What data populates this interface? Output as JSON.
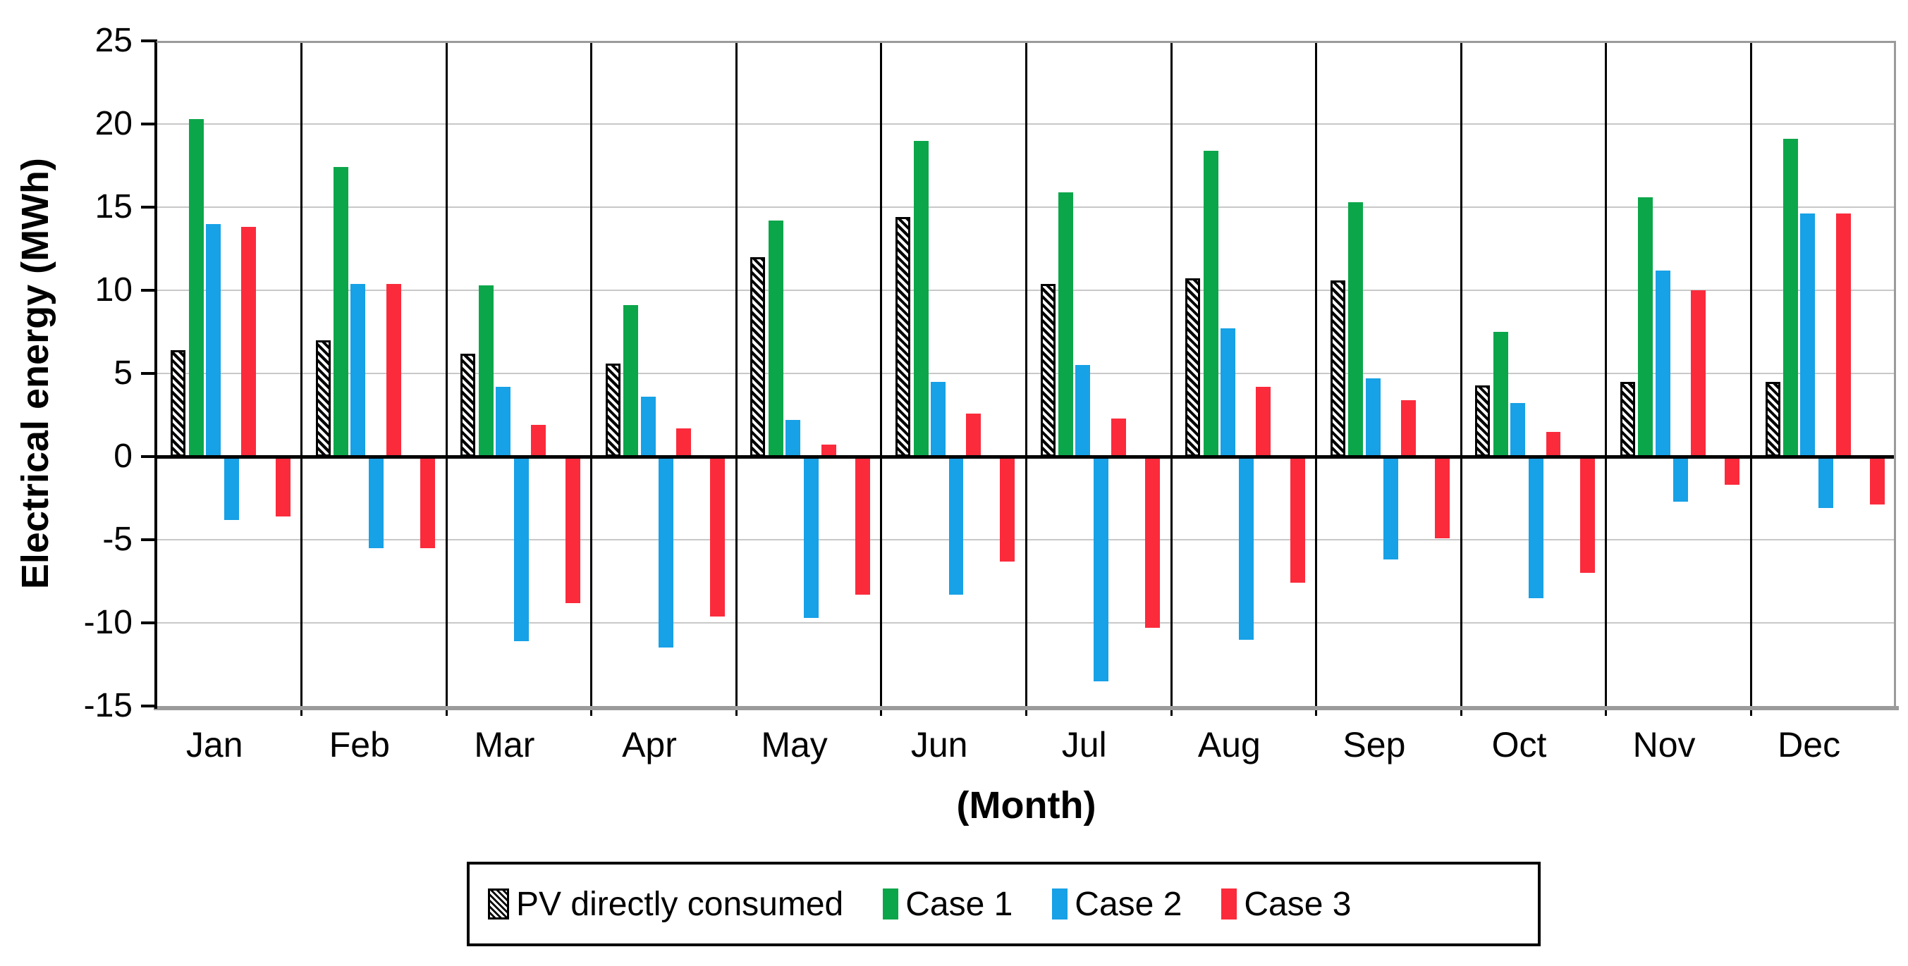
{
  "chart_data": {
    "type": "bar",
    "title": "",
    "ylabel": "Electrical energy (MWh)",
    "xlabel": "(Month)",
    "ylim": [
      -15,
      25
    ],
    "ytick_step": 5,
    "yticks": [
      25,
      20,
      15,
      10,
      5,
      0,
      -5,
      -10,
      -15
    ],
    "grid": true,
    "legend_position": "bottom",
    "categories": [
      "Jan",
      "Feb",
      "Mar",
      "Apr",
      "May",
      "Jun",
      "Jul",
      "Aug",
      "Sep",
      "Oct",
      "Nov",
      "Dec"
    ],
    "series": [
      {
        "name": "PV directly consumed",
        "swatch": "hatched",
        "color": "#000000",
        "values": [
          6.4,
          7.0,
          6.2,
          5.6,
          12.0,
          14.4,
          10.4,
          10.7,
          10.6,
          4.3,
          4.5,
          4.5
        ]
      },
      {
        "name": "Case 1",
        "swatch": "solid",
        "color": "#0ca64a",
        "values": [
          20.3,
          17.4,
          10.3,
          9.1,
          14.2,
          19.0,
          15.9,
          18.4,
          15.3,
          7.5,
          15.6,
          19.1
        ]
      },
      {
        "name": "Case 2",
        "swatch": "solid",
        "color": "#17a1e6",
        "values_positive": [
          14.0,
          10.4,
          4.2,
          3.6,
          2.2,
          4.5,
          5.5,
          7.7,
          4.7,
          3.2,
          11.2,
          14.6
        ],
        "values_negative": [
          -3.8,
          -5.5,
          -11.1,
          -11.5,
          -9.7,
          -8.3,
          -13.5,
          -11.0,
          -6.2,
          -8.5,
          -2.7,
          -3.1
        ]
      },
      {
        "name": "Case 3",
        "swatch": "solid",
        "color": "#fb2b3c",
        "values_positive": [
          13.8,
          10.4,
          1.9,
          1.7,
          0.7,
          2.6,
          2.3,
          4.2,
          3.4,
          1.5,
          10.0,
          14.6
        ],
        "values_negative": [
          -3.6,
          -5.5,
          -8.8,
          -9.6,
          -8.3,
          -6.3,
          -10.3,
          -7.6,
          -4.9,
          -7.0,
          -1.7,
          -2.9
        ]
      }
    ]
  },
  "colors": {
    "gridline": "#c8c8c8",
    "frame": "#9b9b9b",
    "axis": "#000000",
    "zero_line": "#000000",
    "background": "#ffffff"
  }
}
